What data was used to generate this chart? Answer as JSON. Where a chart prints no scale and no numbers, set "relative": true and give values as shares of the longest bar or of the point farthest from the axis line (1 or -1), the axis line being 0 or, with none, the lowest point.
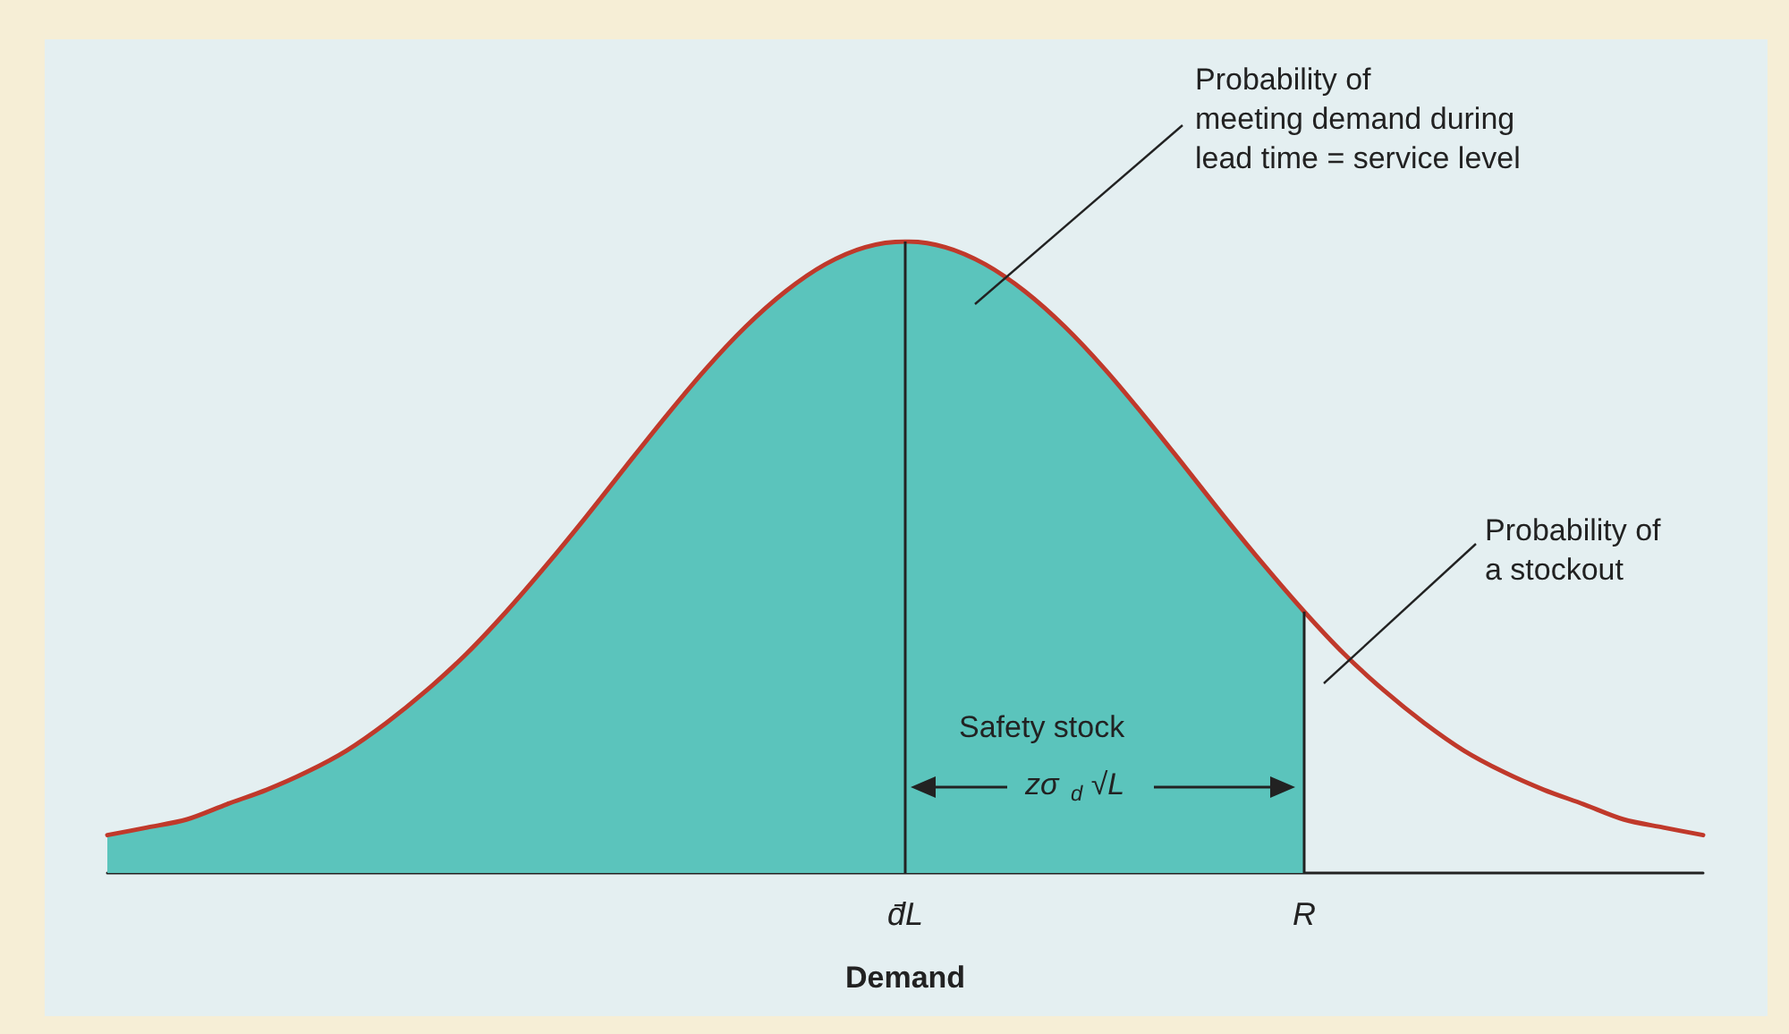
{
  "chart_data": {
    "type": "area",
    "relative": true,
    "xlabel": "Demand",
    "categories": [
      null,
      null,
      null,
      null,
      null,
      null,
      null,
      null,
      null,
      null,
      null,
      null,
      null,
      null,
      null,
      null,
      null,
      null,
      null,
      null,
      "d̄L",
      null,
      null,
      null,
      null,
      null,
      null,
      null,
      null,
      null,
      "R",
      null,
      null,
      null,
      null,
      null,
      null,
      null,
      null,
      null,
      null
    ],
    "series": [
      {
        "color": "#5bc4bc",
        "values": [
          0.06,
          0.072,
          0.085,
          0.109,
          0.132,
          0.16,
          0.194,
          0.238,
          0.289,
          0.347,
          0.414,
          0.487,
          0.564,
          0.644,
          0.723,
          0.798,
          0.865,
          0.921,
          0.964,
          0.991,
          1,
          0.991,
          0.964,
          0.921,
          0.865,
          0.798,
          0.723,
          0.644,
          0.564,
          0.487,
          0.414,
          null,
          null,
          null,
          null,
          null,
          null,
          null,
          null,
          null,
          null
        ]
      },
      {
        "type": "line",
        "color": "#c0392b",
        "values": [
          0.06,
          0.072,
          0.085,
          0.109,
          0.132,
          0.16,
          0.194,
          0.238,
          0.289,
          0.347,
          0.414,
          0.487,
          0.564,
          0.644,
          0.723,
          0.798,
          0.865,
          0.921,
          0.964,
          0.991,
          1,
          0.991,
          0.964,
          0.921,
          0.865,
          0.798,
          0.723,
          0.644,
          0.564,
          0.487,
          0.414,
          0.347,
          0.289,
          0.238,
          0.194,
          0.16,
          0.132,
          0.109,
          0.085,
          0.072,
          0.06
        ]
      }
    ],
    "ref_lines": [
      {
        "axis": "x",
        "value": "d̄L",
        "color": "#222222"
      },
      {
        "axis": "x",
        "value": "R",
        "color": "#222222"
      }
    ],
    "annotations": [
      "Probability of\nmeeting demand during\nlead time = service level",
      "Probability of\na stockout",
      "Safety stock",
      "zσ$_{d}$ √L"
    ],
    "grid": false,
    "marker": "none",
    "line_style": "solid"
  }
}
